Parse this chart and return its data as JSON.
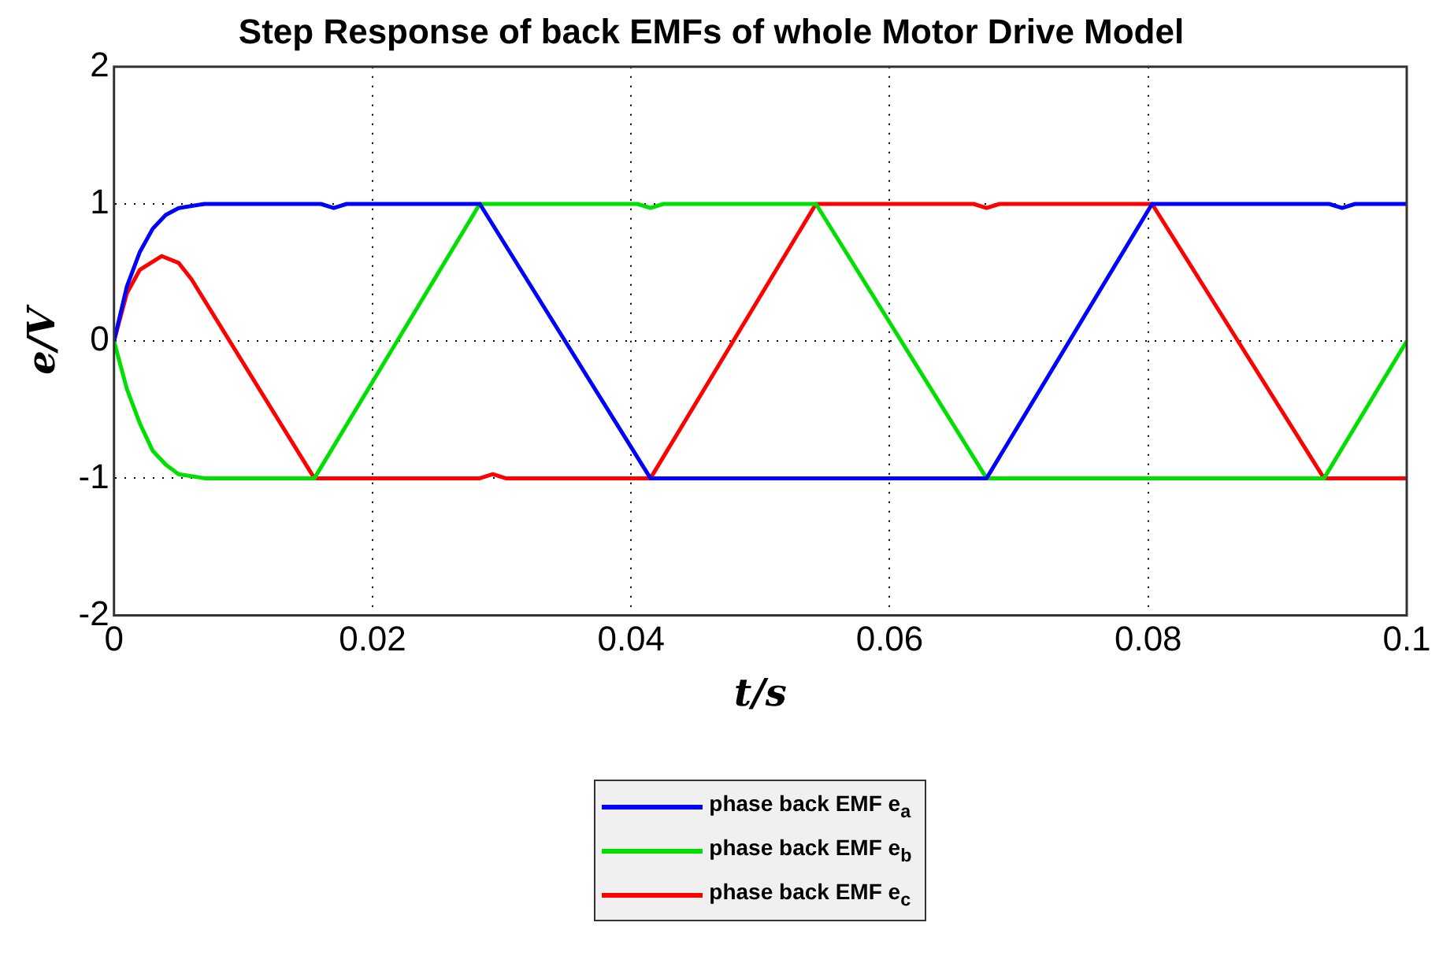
{
  "chart_data": {
    "type": "line",
    "title": "Step Response of back EMFs of whole Motor Drive Model",
    "xlabel": "t/s",
    "ylabel": "e/V",
    "xlim": [
      0,
      0.1
    ],
    "xticks": [
      0,
      0.02,
      0.04,
      0.06,
      0.08,
      0.1
    ],
    "ylim": [
      -2,
      2
    ],
    "yticks": [
      -2,
      -1,
      0,
      1,
      2
    ],
    "grid": true,
    "legend": "bottom",
    "line_style": "solid",
    "marker": "none",
    "series": [
      {
        "name": "phase back EMF e$_{a}$",
        "color": "#0000ff",
        "x": [
          0,
          0.001,
          0.002,
          0.003,
          0.004,
          0.005,
          0.007,
          0.016,
          0.017,
          0.018,
          0.0283,
          0.0415,
          0.0675,
          0.0803,
          0.094,
          0.095,
          0.096,
          0.1
        ],
        "values": [
          0,
          0.4,
          0.65,
          0.82,
          0.92,
          0.97,
          1,
          1,
          0.97,
          1,
          1,
          -1,
          -1,
          1,
          1,
          0.97,
          1,
          1
        ]
      },
      {
        "name": "phase back EMF e$_{b}$",
        "color": "#00e000",
        "x": [
          0,
          0.001,
          0.002,
          0.003,
          0.004,
          0.005,
          0.007,
          0.0155,
          0.0283,
          0.0405,
          0.0415,
          0.0425,
          0.0543,
          0.0675,
          0.0936,
          0.1
        ],
        "values": [
          0,
          -0.35,
          -0.6,
          -0.8,
          -0.9,
          -0.97,
          -1,
          -1,
          1,
          1,
          0.97,
          1,
          1,
          -1,
          -1,
          0
        ]
      },
      {
        "name": "phase back EMF e$_{c}$",
        "color": "#ff0000",
        "x": [
          0,
          0.001,
          0.002,
          0.0037,
          0.005,
          0.006,
          0.0155,
          0.0283,
          0.0293,
          0.0303,
          0.0415,
          0.0543,
          0.0665,
          0.0675,
          0.0685,
          0.0803,
          0.0936,
          0.1
        ],
        "values": [
          0,
          0.35,
          0.52,
          0.62,
          0.57,
          0.45,
          -1,
          -1,
          -0.97,
          -1,
          -1,
          1,
          1,
          0.97,
          1,
          1,
          -1,
          -1
        ]
      }
    ]
  }
}
